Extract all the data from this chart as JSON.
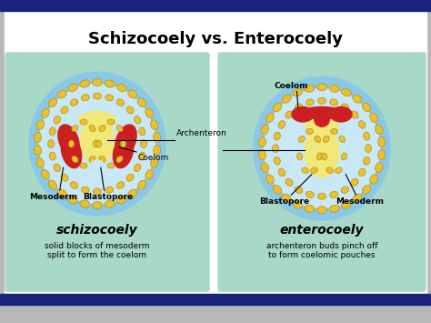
{
  "title": "Schizocoely vs. Enterocoely",
  "title_fontsize": 13,
  "title_fontweight": "bold",
  "bg_gray": "#b8b8b8",
  "white_bg": "#ffffff",
  "panel_bg": "#a8d8c8",
  "top_bar_color": "#1a237e",
  "bottom_bar_color": "#1a237e",
  "left_label": "schizocoely",
  "left_sub": "solid blocks of mesoderm\nsplit to form the coelom",
  "right_label": "enterocoely",
  "right_sub": "archenteron buds pinch off\nto form coelomic pouches",
  "outer_ring_color": "#88c8e8",
  "light_blue_fill": "#c8e8f8",
  "yellow_inner": "#f0e878",
  "red_mesoderm": "#cc2020",
  "dot_color": "#e8c030",
  "dot_outline": "#b89010"
}
